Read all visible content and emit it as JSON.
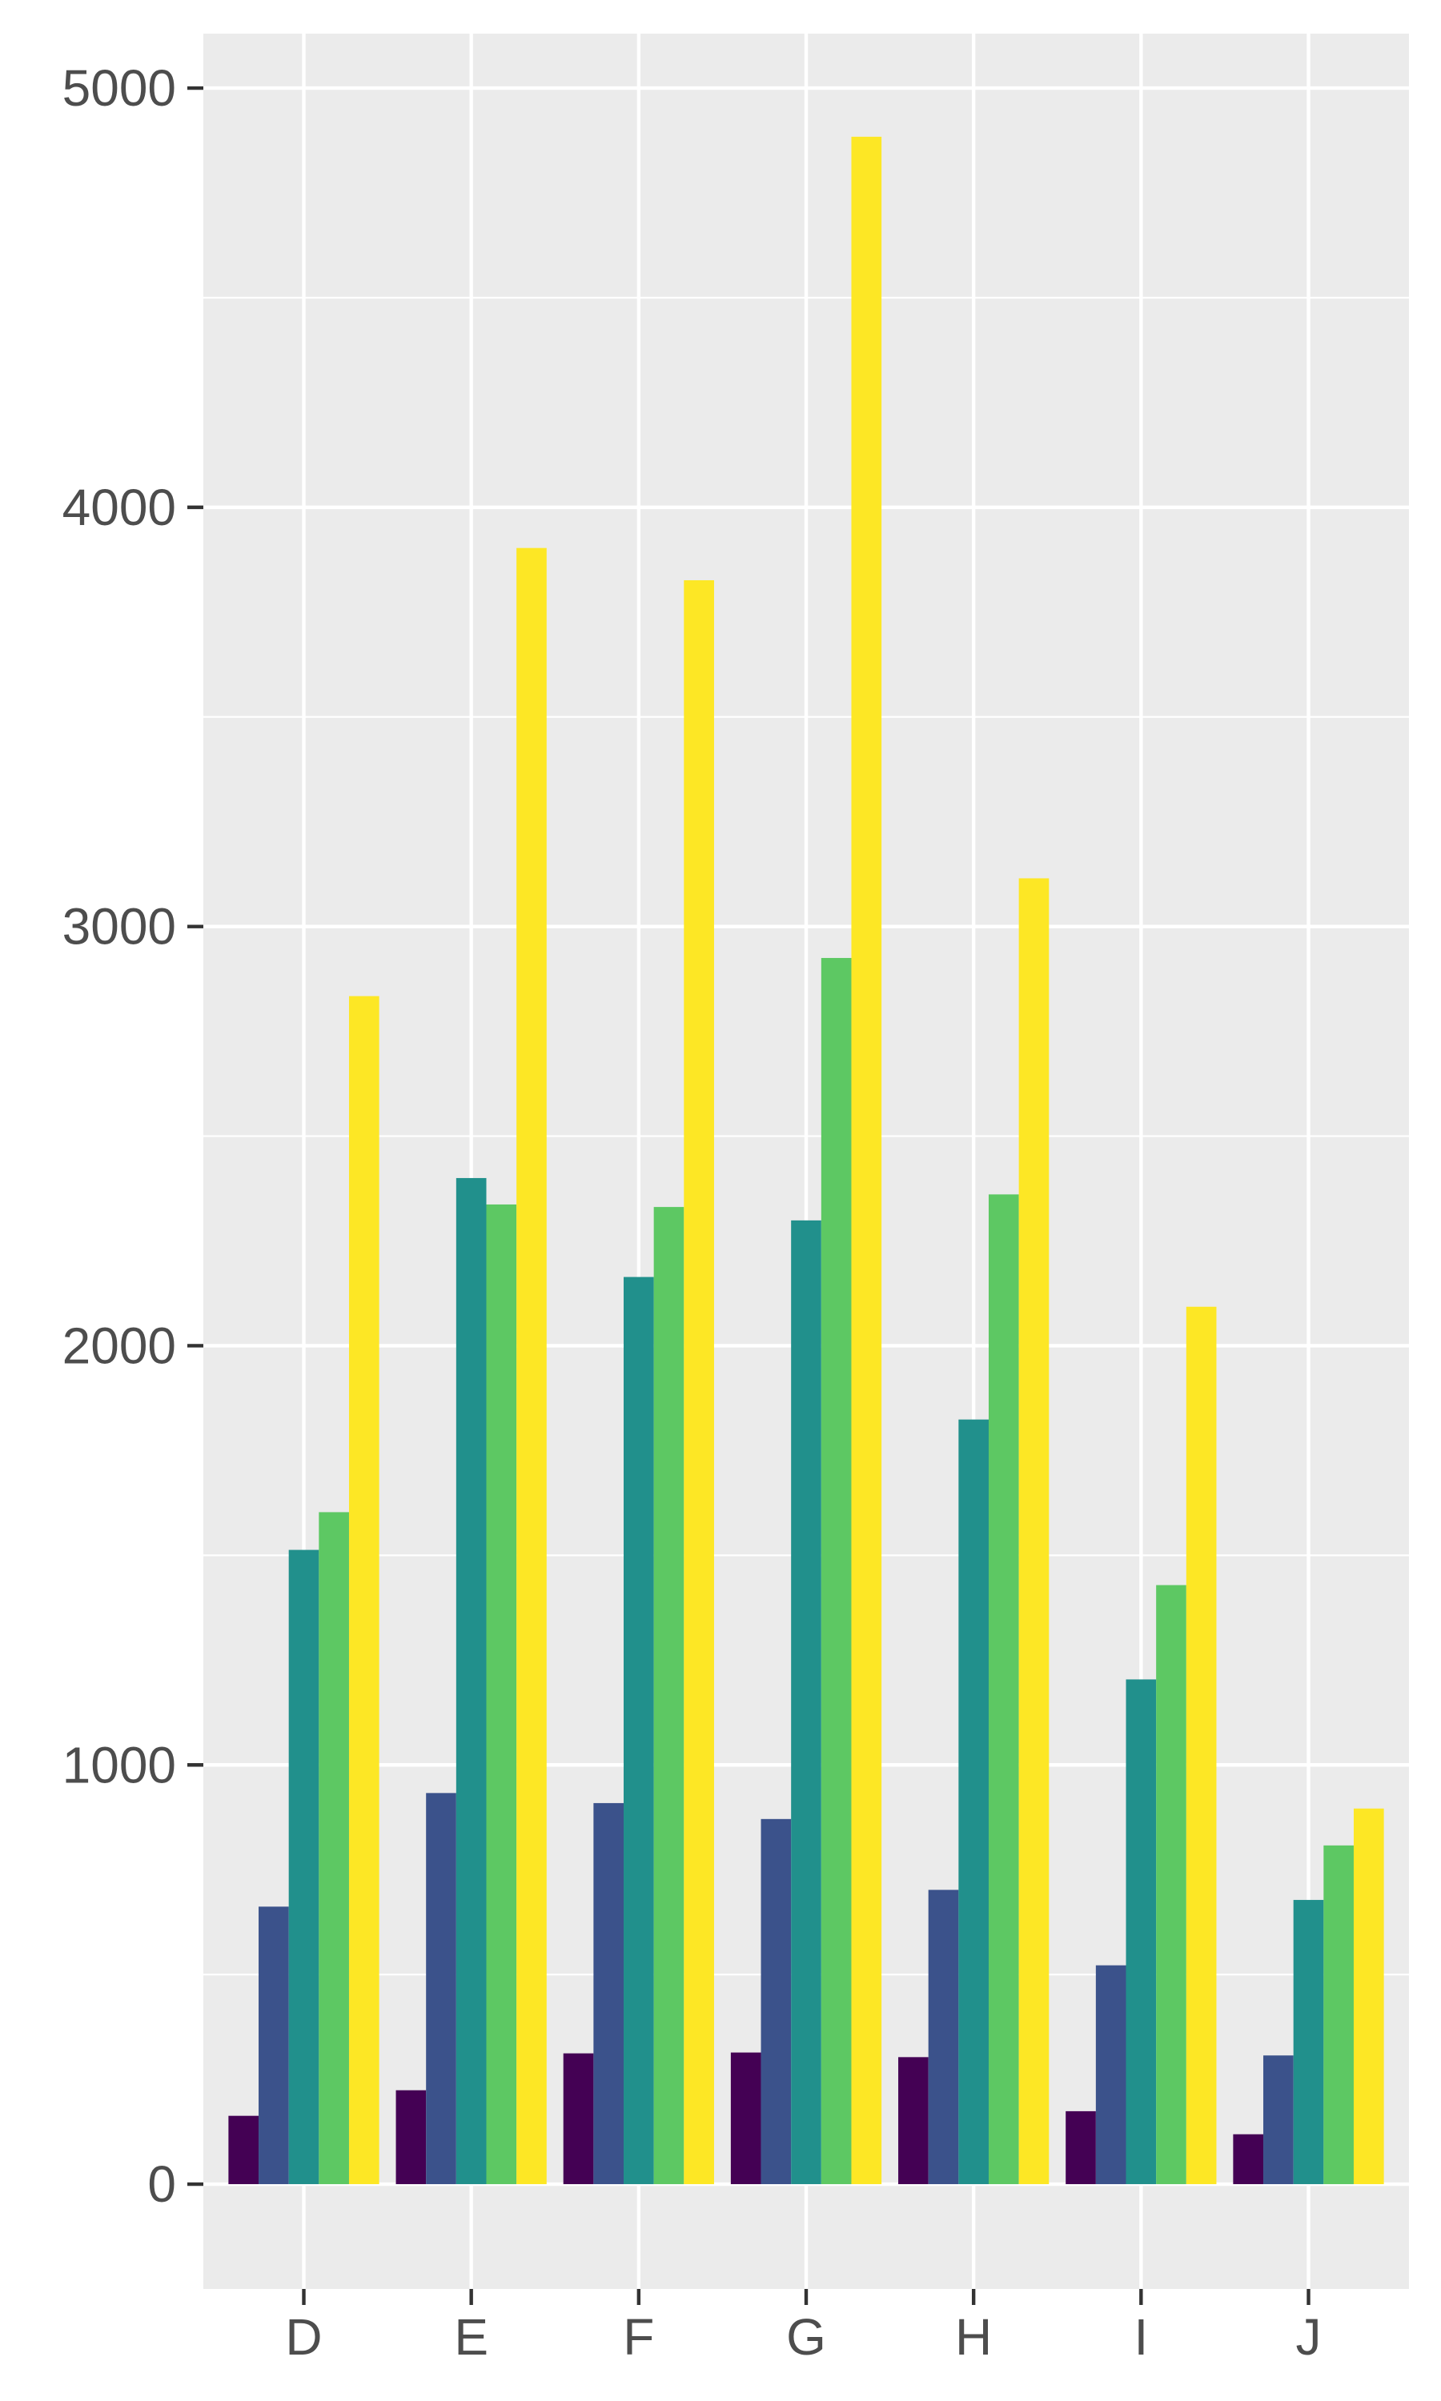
{
  "chart_data": {
    "type": "bar",
    "title": "",
    "xlabel": "",
    "ylabel": "",
    "categories": [
      "D",
      "E",
      "F",
      "G",
      "H",
      "I",
      "J"
    ],
    "series": [
      {
        "color": "#440154",
        "values": [
          163,
          224,
          312,
          314,
          303,
          174,
          119
        ]
      },
      {
        "color": "#3B528B",
        "values": [
          662,
          933,
          909,
          871,
          702,
          522,
          307
        ]
      },
      {
        "color": "#21908C",
        "values": [
          1513,
          2400,
          2164,
          2299,
          1824,
          1204,
          678
        ]
      },
      {
        "color": "#5DC863",
        "values": [
          1603,
          2337,
          2331,
          2925,
          2361,
          1429,
          808
        ]
      },
      {
        "color": "#FDE725",
        "values": [
          2834,
          3903,
          3826,
          4884,
          3115,
          2093,
          896
        ]
      }
    ],
    "yticks": [
      0,
      1000,
      2000,
      3000,
      4000,
      5000
    ],
    "ylim": [
      -250,
      5130
    ],
    "grid": true,
    "legend": "none",
    "colors": {
      "panel_background": "#EBEBEB",
      "grid": "#FFFFFF",
      "axis": "#333333",
      "tick_text": "#4D4D4D"
    }
  }
}
